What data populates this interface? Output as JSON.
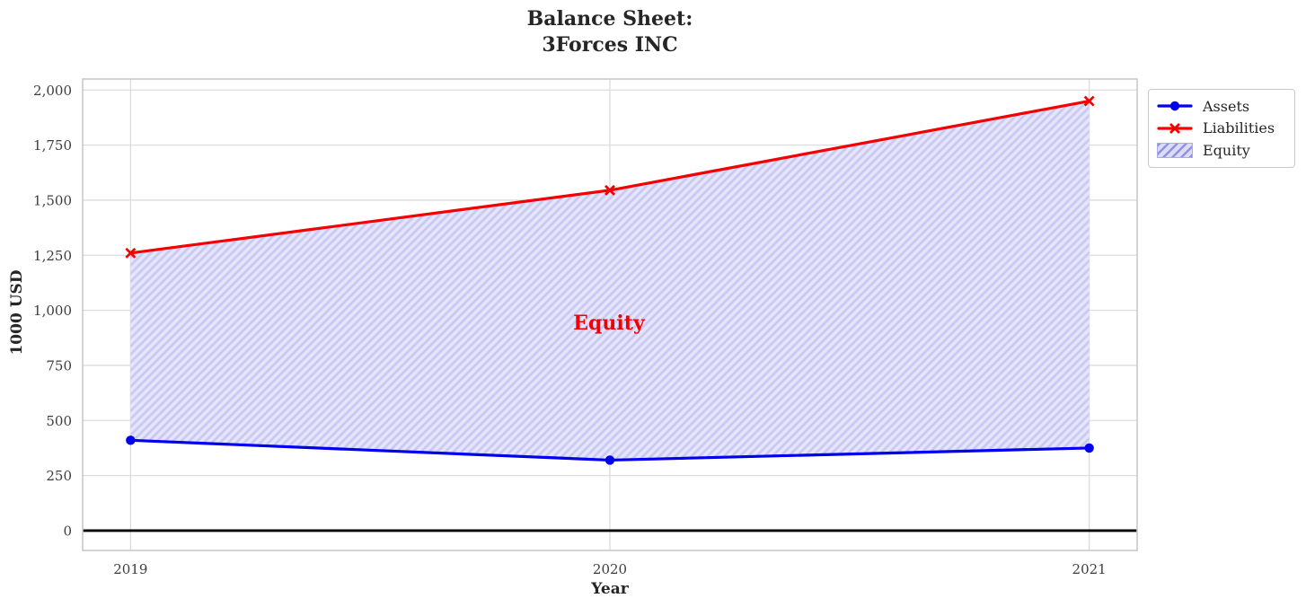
{
  "chart_data": {
    "type": "line",
    "title_lines": [
      "Balance Sheet:",
      "3Forces INC"
    ],
    "xlabel": "Year",
    "ylabel": "1000 USD",
    "x": [
      2019,
      2020,
      2021
    ],
    "series": [
      {
        "name": "Assets",
        "values": [
          410,
          320,
          375
        ],
        "color": "#0000f0",
        "marker": "circle"
      },
      {
        "name": "Liabilities",
        "values": [
          1260,
          1545,
          1950
        ],
        "color": "#f40000",
        "marker": "x"
      }
    ],
    "area": {
      "name": "Equity",
      "between": [
        "Assets",
        "Liabilities"
      ],
      "fill": "#e5e5fb",
      "hatch_color": "#c9c9f3",
      "hatch": "///"
    },
    "annotation": {
      "text": "Equity",
      "x": 2020,
      "y": 940,
      "color": "#f40000"
    },
    "xlim": [
      2018.9,
      2021.1
    ],
    "ylim": [
      -90,
      2050
    ],
    "grid": true,
    "yticks": [
      0,
      250,
      500,
      750,
      1000,
      1250,
      1500,
      1750,
      2000
    ],
    "ytick_labels": [
      "0",
      "250",
      "500",
      "750",
      "1,000",
      "1,250",
      "1,500",
      "1,750",
      "2,000"
    ],
    "xticks": [
      2019,
      2020,
      2021
    ],
    "xtick_labels": [
      "2019",
      "2020",
      "2021"
    ],
    "zero_line": {
      "y": 0,
      "color": "#000000"
    },
    "legend": {
      "position": "outside-top-right",
      "entries": [
        {
          "label": "Assets",
          "type": "line",
          "color": "#0000f0",
          "marker": "circle"
        },
        {
          "label": "Liabilities",
          "type": "line",
          "color": "#f40000",
          "marker": "x"
        },
        {
          "label": "Equity",
          "type": "patch",
          "fill": "#dcdcf8",
          "hatch_color": "#9191e2"
        }
      ]
    },
    "colors": {
      "grid": "#dcdcdc",
      "spine": "#c9c9c9",
      "tick_label": "#3d3d3d",
      "title": "#262626"
    }
  }
}
